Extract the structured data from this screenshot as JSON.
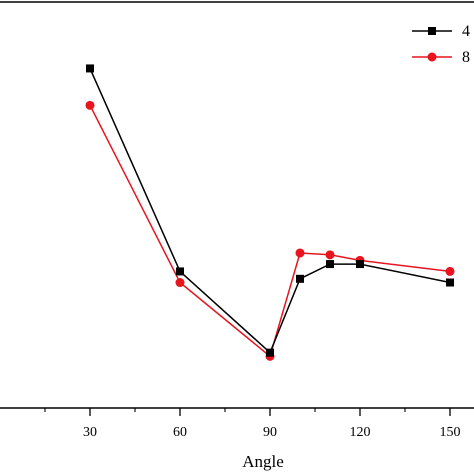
{
  "chart_data": {
    "type": "line",
    "xlabel": "Angle",
    "ylabel": "",
    "xlim": [
      0,
      158
    ],
    "xticks": [
      30,
      60,
      90,
      120,
      150
    ],
    "x_minor_ticks": [
      15,
      45,
      75,
      105,
      135
    ],
    "series": [
      {
        "name": "4",
        "color": "#000000",
        "marker": "square",
        "x": [
          30,
          60,
          90,
          100,
          110,
          120,
          150
        ],
        "y": [
          0.92,
          0.37,
          0.15,
          0.35,
          0.39,
          0.39,
          0.34
        ]
      },
      {
        "name": "8",
        "color": "#e8141e",
        "marker": "circle",
        "x": [
          30,
          60,
          90,
          100,
          110,
          120,
          150
        ],
        "y": [
          0.82,
          0.34,
          0.14,
          0.42,
          0.415,
          0.4,
          0.37
        ]
      }
    ],
    "ylim": [
      0,
      1.1
    ],
    "grid": false,
    "legend_position": "top-right"
  }
}
